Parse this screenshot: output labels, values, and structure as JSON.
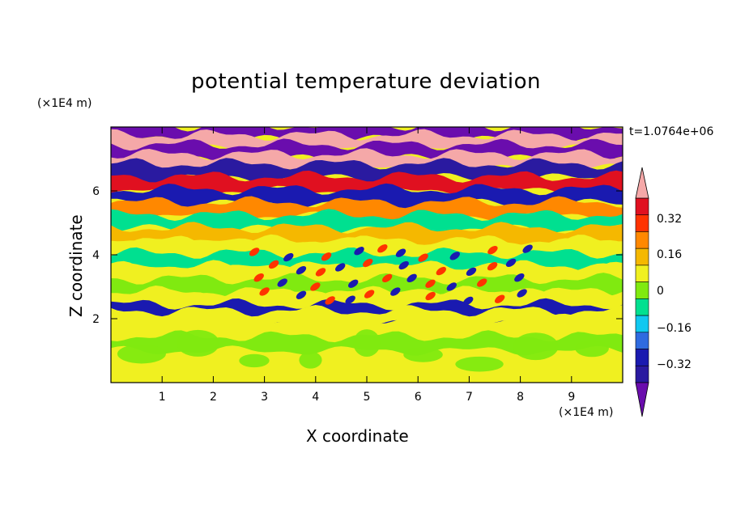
{
  "chart_data": {
    "type": "heatmap",
    "title": "potential temperature deviation",
    "xlabel": "X coordinate",
    "ylabel": "Z coordinate",
    "x_unit": "(×1E4 m)",
    "y_unit": "(×1E4 m)",
    "time_label": "t=1.0764e+06",
    "xlim": [
      0,
      10
    ],
    "ylim": [
      0,
      8
    ],
    "x_ticks": [
      "1",
      "2",
      "3",
      "4",
      "5",
      "6",
      "7",
      "8",
      "9"
    ],
    "y_ticks": [
      "2",
      "4",
      "6"
    ],
    "colorbar": {
      "levels": [
        -0.48,
        -0.4,
        -0.32,
        -0.24,
        -0.16,
        -0.08,
        0,
        0.08,
        0.16,
        0.24,
        0.32,
        0.4,
        0.48
      ],
      "labels": [
        "0.32",
        "0.16",
        "0",
        "-0.16",
        "-0.32"
      ],
      "colors": [
        "#6a0dad",
        "#2a1aa0",
        "#1a1ab0",
        "#2f6be0",
        "#10c8f0",
        "#00e090",
        "#80ea10",
        "#f0f020",
        "#f5b800",
        "#ff8800",
        "#ff3300",
        "#e01020",
        "#f5a8a8"
      ]
    },
    "layers": [
      {
        "z": 7.8,
        "value": -0.48
      },
      {
        "z": 7.5,
        "value": 0.48
      },
      {
        "z": 7.2,
        "value": -0.48
      },
      {
        "z": 6.9,
        "value": 0.48
      },
      {
        "z": 6.6,
        "value": -0.4
      },
      {
        "z": 6.2,
        "value": 0.4
      },
      {
        "z": 5.8,
        "value": -0.32
      },
      {
        "z": 5.4,
        "value": 0.24
      },
      {
        "z": 5.0,
        "value": -0.08
      },
      {
        "z": 4.6,
        "value": 0.16
      },
      {
        "z": 4.2,
        "value": 0.08
      },
      {
        "z": 3.8,
        "value": -0.08
      },
      {
        "z": 3.4,
        "value": 0.08
      },
      {
        "z": 3.0,
        "value": 0
      },
      {
        "z": 2.6,
        "value": 0.08
      },
      {
        "z": 2.2,
        "value": -0.32
      },
      {
        "z": 2.0,
        "value": 0.08
      },
      {
        "z": 1.2,
        "value": 0.0
      },
      {
        "z": 0.4,
        "value": 0.08
      }
    ]
  }
}
